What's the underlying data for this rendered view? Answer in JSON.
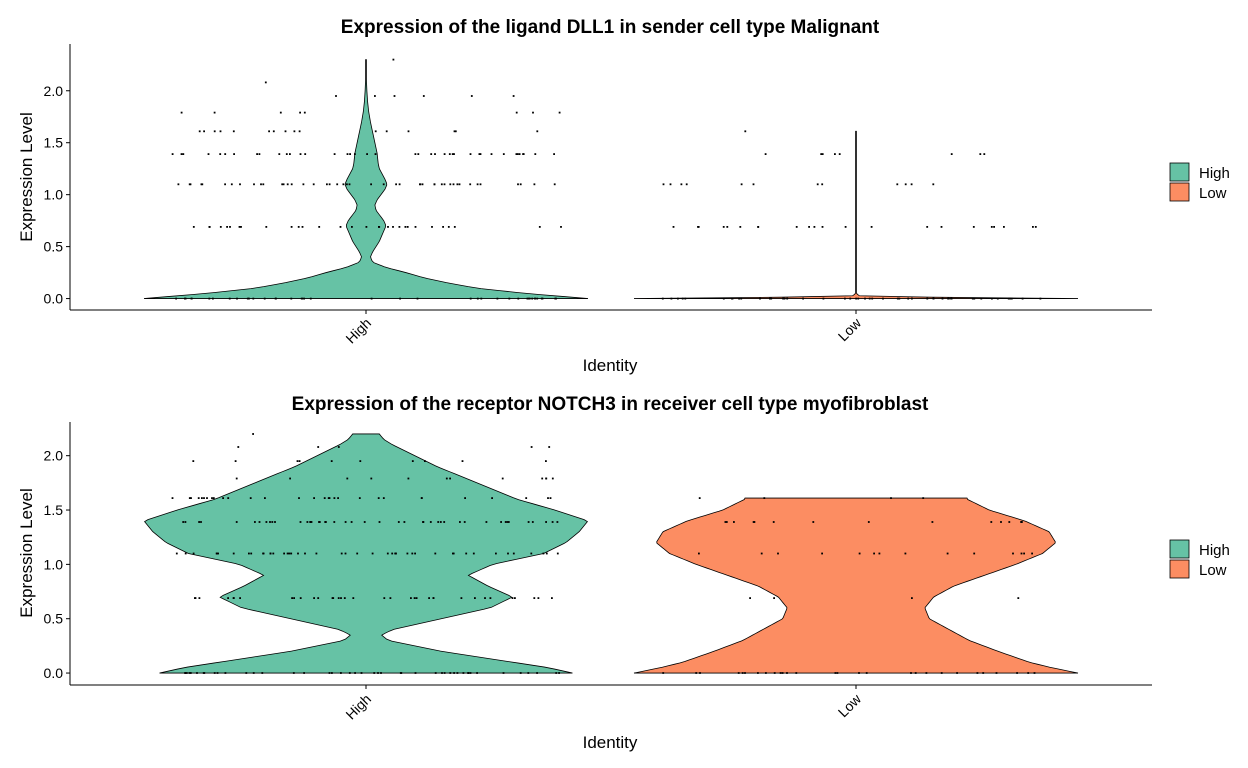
{
  "colors": {
    "High": "#66c2a5",
    "Low": "#fc8d62",
    "outline": "#000000",
    "points": "#000000"
  },
  "chart_data": [
    {
      "type": "violin",
      "title": "Expression of the ligand DLL1 in sender cell type Malignant",
      "xlabel": "Identity",
      "ylabel": "Expression Level",
      "categories": [
        "High",
        "Low"
      ],
      "yticks": [
        0.0,
        0.5,
        1.0,
        1.5,
        2.0
      ],
      "ytick_labels": [
        "0.0",
        "0.5",
        "1.0",
        "1.5",
        "2.0"
      ],
      "ylim": [
        -0.11,
        2.45
      ],
      "grid": false,
      "legend": {
        "placement": "right",
        "entries": [
          "High",
          "Low"
        ]
      },
      "series": [
        {
          "name": "High",
          "max": 2.3,
          "density": [
            [
              0,
              1.0
            ],
            [
              0.05,
              0.72
            ],
            [
              0.1,
              0.5
            ],
            [
              0.15,
              0.37
            ],
            [
              0.2,
              0.26
            ],
            [
              0.25,
              0.18
            ],
            [
              0.3,
              0.09
            ],
            [
              0.35,
              0.03
            ],
            [
              0.4,
              0.02
            ],
            [
              0.45,
              0.03
            ],
            [
              0.55,
              0.06
            ],
            [
              0.65,
              0.08
            ],
            [
              0.7,
              0.09
            ],
            [
              0.75,
              0.08
            ],
            [
              0.85,
              0.045
            ],
            [
              0.9,
              0.04
            ],
            [
              0.95,
              0.05
            ],
            [
              1.05,
              0.085
            ],
            [
              1.1,
              0.095
            ],
            [
              1.15,
              0.085
            ],
            [
              1.25,
              0.06
            ],
            [
              1.3,
              0.055
            ],
            [
              1.4,
              0.05
            ],
            [
              1.5,
              0.04
            ],
            [
              1.6,
              0.03
            ],
            [
              1.7,
              0.02
            ],
            [
              1.8,
              0.012
            ],
            [
              1.9,
              0.007
            ],
            [
              2.0,
              0.004
            ],
            [
              2.1,
              0.002
            ],
            [
              2.3,
              0.0
            ]
          ],
          "jitter_levels": [
            [
              0.0,
              40
            ],
            [
              0.69,
              30
            ],
            [
              1.1,
              45
            ],
            [
              1.39,
              40
            ],
            [
              1.61,
              16
            ],
            [
              1.79,
              8
            ],
            [
              1.95,
              6
            ],
            [
              2.08,
              1
            ],
            [
              2.3,
              1
            ]
          ]
        },
        {
          "name": "Low",
          "max": 1.61,
          "density": [
            [
              0,
              1.0
            ],
            [
              0.01,
              0.5
            ],
            [
              0.02,
              0.02
            ],
            [
              0.05,
              0.0
            ],
            [
              1.61,
              0.0
            ]
          ],
          "jitter_levels": [
            [
              0.0,
              50
            ],
            [
              0.69,
              22
            ],
            [
              1.1,
              12
            ],
            [
              1.39,
              8
            ],
            [
              1.61,
              1
            ]
          ]
        }
      ]
    },
    {
      "type": "violin",
      "title": "Expression of the receptor NOTCH3 in receiver cell type myofibroblast",
      "xlabel": "Identity",
      "ylabel": "Expression Level",
      "categories": [
        "High",
        "Low"
      ],
      "yticks": [
        0.0,
        0.5,
        1.0,
        1.5,
        2.0
      ],
      "ytick_labels": [
        "0.0",
        "0.5",
        "1.0",
        "1.5",
        "2.0"
      ],
      "ylim": [
        -0.11,
        2.31
      ],
      "grid": false,
      "legend": {
        "placement": "right",
        "entries": [
          "High",
          "Low"
        ]
      },
      "series": [
        {
          "name": "High",
          "max": 2.2,
          "density": [
            [
              0,
              0.93
            ],
            [
              0.05,
              0.82
            ],
            [
              0.1,
              0.66
            ],
            [
              0.2,
              0.34
            ],
            [
              0.3,
              0.1
            ],
            [
              0.35,
              0.07
            ],
            [
              0.4,
              0.12
            ],
            [
              0.5,
              0.34
            ],
            [
              0.6,
              0.56
            ],
            [
              0.7,
              0.66
            ],
            [
              0.8,
              0.55
            ],
            [
              0.9,
              0.46
            ],
            [
              1.0,
              0.57
            ],
            [
              1.1,
              0.8
            ],
            [
              1.2,
              0.9
            ],
            [
              1.3,
              0.96
            ],
            [
              1.4,
              1.0
            ],
            [
              1.5,
              0.85
            ],
            [
              1.6,
              0.68
            ],
            [
              1.7,
              0.56
            ],
            [
              1.8,
              0.44
            ],
            [
              1.9,
              0.32
            ],
            [
              2.0,
              0.22
            ],
            [
              2.1,
              0.12
            ],
            [
              2.15,
              0.08
            ],
            [
              2.2,
              0.06
            ]
          ],
          "jitter_levels": [
            [
              0.0,
              45
            ],
            [
              0.69,
              35
            ],
            [
              1.1,
              45
            ],
            [
              1.39,
              45
            ],
            [
              1.61,
              30
            ],
            [
              1.79,
              12
            ],
            [
              1.95,
              10
            ],
            [
              2.08,
              5
            ],
            [
              2.2,
              1
            ]
          ]
        },
        {
          "name": "Low",
          "max": 1.61,
          "density": [
            [
              0,
              1.0
            ],
            [
              0.05,
              0.88
            ],
            [
              0.1,
              0.78
            ],
            [
              0.2,
              0.64
            ],
            [
              0.3,
              0.51
            ],
            [
              0.4,
              0.42
            ],
            [
              0.5,
              0.33
            ],
            [
              0.6,
              0.31
            ],
            [
              0.7,
              0.35
            ],
            [
              0.8,
              0.44
            ],
            [
              0.9,
              0.58
            ],
            [
              1.0,
              0.72
            ],
            [
              1.1,
              0.84
            ],
            [
              1.2,
              0.9
            ],
            [
              1.3,
              0.87
            ],
            [
              1.4,
              0.76
            ],
            [
              1.5,
              0.6
            ],
            [
              1.6,
              0.5
            ],
            [
              1.61,
              0.5
            ]
          ],
          "jitter_levels": [
            [
              0.0,
              28
            ],
            [
              0.69,
              4
            ],
            [
              1.1,
              14
            ],
            [
              1.39,
              14
            ],
            [
              1.61,
              4
            ]
          ]
        }
      ]
    }
  ]
}
